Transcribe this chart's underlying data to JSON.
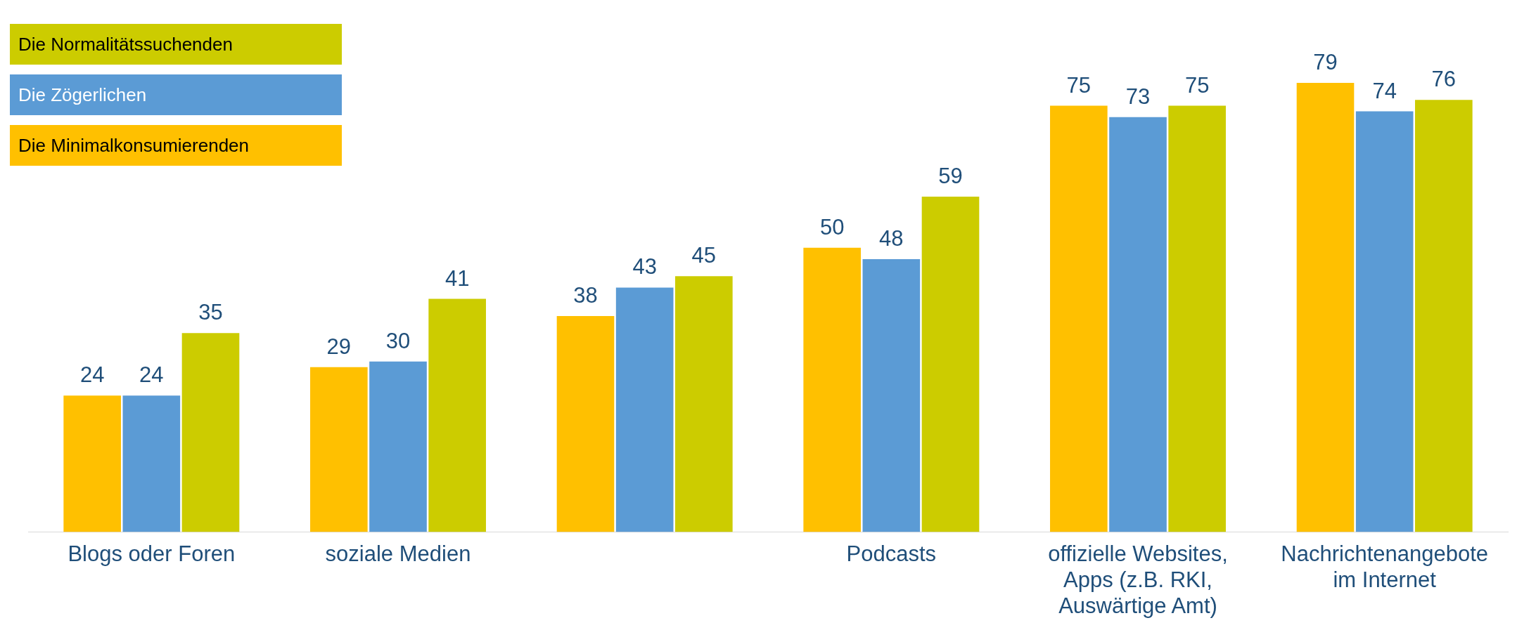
{
  "chart_data": {
    "type": "bar",
    "categories": [
      "Blogs oder Foren",
      "soziale Medien",
      null,
      "Podcasts",
      "offizielle Websites, Apps (z.B. RKI, Auswärtige Amt)",
      "Nachrichtenangebote im Internet"
    ],
    "series": [
      {
        "name": "Die Minimalkonsumierenden",
        "color": "#ffc000",
        "values": [
          24,
          29,
          38,
          50,
          75,
          79
        ]
      },
      {
        "name": "Die Zögerlichen",
        "color": "#5b9bd5",
        "values": [
          24,
          30,
          43,
          48,
          73,
          74
        ]
      },
      {
        "name": "Die Normalitätssuchenden",
        "color": "#cccc00",
        "values": [
          35,
          41,
          45,
          59,
          75,
          76
        ]
      }
    ],
    "data_labels": true,
    "legend": "top left",
    "grid": false
  }
}
